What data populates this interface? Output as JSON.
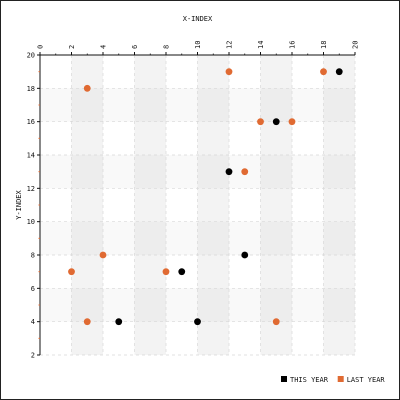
{
  "chart_data": {
    "type": "scatter",
    "title": "",
    "xlabel": "X-INDEX",
    "ylabel": "Y-INDEX",
    "xlim": [
      0,
      20
    ],
    "ylim": [
      2,
      20
    ],
    "xticks": [
      0,
      2,
      4,
      6,
      8,
      10,
      12,
      14,
      16,
      18,
      20
    ],
    "yticks": [
      2,
      4,
      6,
      8,
      10,
      12,
      14,
      16,
      18,
      20
    ],
    "x_axis_position": "top",
    "grid": true,
    "legend_position": "bottom-right",
    "series": [
      {
        "name": "THIS YEAR",
        "color": "#000000",
        "points": [
          [
            19,
            19
          ],
          [
            15,
            16
          ],
          [
            12,
            13
          ],
          [
            13,
            8
          ],
          [
            9,
            7
          ],
          [
            5,
            4
          ],
          [
            10,
            4
          ]
        ]
      },
      {
        "name": "LAST YEAR",
        "color": "#e06a32",
        "points": [
          [
            3,
            18
          ],
          [
            12,
            19
          ],
          [
            18,
            19
          ],
          [
            14,
            16
          ],
          [
            16,
            16
          ],
          [
            13,
            13
          ],
          [
            4,
            8
          ],
          [
            2,
            7
          ],
          [
            8,
            7
          ],
          [
            3,
            4
          ],
          [
            15,
            4
          ]
        ]
      }
    ]
  }
}
